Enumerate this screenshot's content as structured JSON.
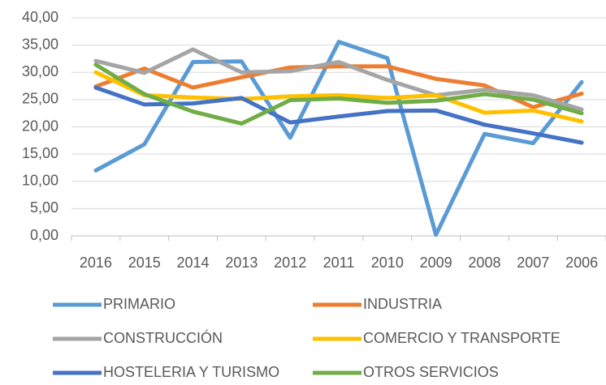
{
  "chart_data": {
    "type": "line",
    "categories": [
      "2016",
      "2015",
      "2014",
      "2013",
      "2012",
      "2011",
      "2010",
      "2009",
      "2008",
      "2007",
      "2006"
    ],
    "series": [
      {
        "name": "PRIMARIO",
        "color": "#5b9bd5",
        "values": [
          12.0,
          16.8,
          31.9,
          32.0,
          18.0,
          35.6,
          32.6,
          0.2,
          18.7,
          17.0,
          28.2
        ]
      },
      {
        "name": "INDUSTRIA",
        "color": "#ed7d31",
        "values": [
          27.4,
          30.7,
          27.2,
          29.1,
          30.9,
          31.1,
          31.1,
          28.8,
          27.6,
          23.6,
          26.1
        ]
      },
      {
        "name": "CONSTRUCCIÓN",
        "color": "#a5a5a5",
        "values": [
          32.1,
          29.9,
          34.2,
          30.0,
          30.2,
          31.9,
          28.6,
          25.8,
          26.8,
          25.8,
          23.2
        ]
      },
      {
        "name": "COMERCIO Y TRANSPORTE",
        "color": "#ffc000",
        "values": [
          30.0,
          25.8,
          25.4,
          25.1,
          25.6,
          25.8,
          25.3,
          25.8,
          22.6,
          23.0,
          21.0
        ]
      },
      {
        "name": "HOSTELERIA Y TURISMO",
        "color": "#4472c4",
        "values": [
          27.2,
          24.1,
          24.3,
          25.3,
          20.8,
          21.9,
          22.9,
          23.0,
          20.4,
          18.8,
          17.1
        ]
      },
      {
        "name": "OTROS SERVICIOS",
        "color": "#70ad47",
        "values": [
          31.4,
          26.0,
          22.8,
          20.6,
          24.9,
          25.2,
          24.4,
          24.8,
          26.0,
          25.0,
          22.5
        ]
      }
    ],
    "ylim": [
      0,
      40
    ],
    "yticks": [
      {
        "value": 0,
        "label": "0,00"
      },
      {
        "value": 5,
        "label": "5,00"
      },
      {
        "value": 10,
        "label": "10,00"
      },
      {
        "value": 15,
        "label": "15,00"
      },
      {
        "value": 20,
        "label": "20,00"
      },
      {
        "value": 25,
        "label": "25,00"
      },
      {
        "value": 30,
        "label": "30,00"
      },
      {
        "value": 35,
        "label": "35,00"
      },
      {
        "value": 40,
        "label": "40,00"
      }
    ],
    "grid": true,
    "legend": "bottom"
  }
}
